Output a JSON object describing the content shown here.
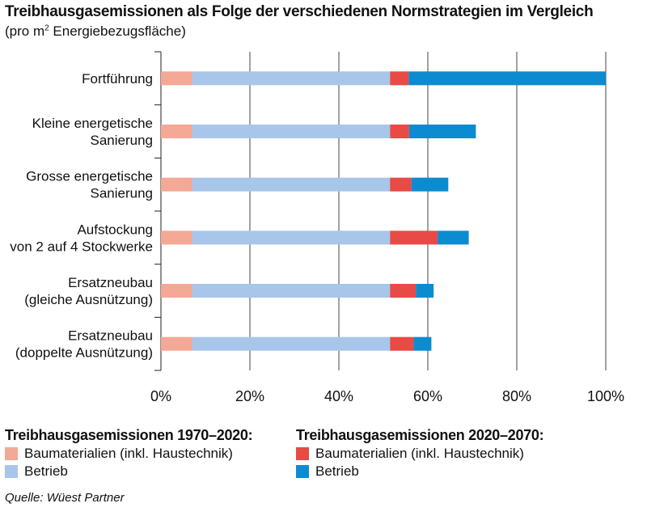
{
  "title": "Treibhausgasemissionen als Folge der verschiedenen Normstrategien im Vergleich",
  "subtitle_pre": "(pro m",
  "subtitle_sup": "2",
  "subtitle_post": " Energiebezugsfläche)",
  "source": "Quelle: Wüest Partner",
  "legend": {
    "group1": {
      "heading": "Treibhausgasemissionen 1970–2020:",
      "items": [
        {
          "label": "Baumaterialien (inkl. Haustechnik)",
          "color": "#f4a896"
        },
        {
          "label": "Betrieb",
          "color": "#a8c6ea"
        }
      ]
    },
    "group2": {
      "heading": "Treibhausgasemissionen 2020–2070:",
      "items": [
        {
          "label": "Baumaterialien (inkl. Haustechnik)",
          "color": "#e84a45"
        },
        {
          "label": "Betrieb",
          "color": "#0d8bd0"
        }
      ]
    }
  },
  "chart_data": {
    "type": "bar",
    "orientation": "horizontal",
    "stacked": true,
    "categories": [
      [
        "Fortführung"
      ],
      [
        "Kleine energetische",
        "Sanierung"
      ],
      [
        "Grosse energetische",
        "Sanierung"
      ],
      [
        "Aufstockung",
        "von 2 auf 4 Stockwerke"
      ],
      [
        "Ersatzneubau",
        "(gleiche Ausnützung)"
      ],
      [
        "Ersatzneubau",
        "(doppelte Ausnützung)"
      ]
    ],
    "series": [
      {
        "name": "Baumaterialien (inkl. Haustechnik) 1970–2020",
        "color": "#f4a896",
        "values": [
          7,
          7,
          7,
          7,
          7,
          7
        ]
      },
      {
        "name": "Betrieb 1970–2020",
        "color": "#a8c6ea",
        "values": [
          44.5,
          44.5,
          44.5,
          44.5,
          44.5,
          44.5
        ]
      },
      {
        "name": "Baumaterialien (inkl. Haustechnik) 2020–2070",
        "color": "#e84a45",
        "values": [
          4.2,
          4.3,
          4.8,
          10.7,
          5.8,
          5.3
        ]
      },
      {
        "name": "Betrieb 2020–2070",
        "color": "#0d8bd0",
        "values": [
          44.3,
          15,
          8.3,
          7,
          4,
          4
        ]
      }
    ],
    "x_ticks": [
      "0%",
      "20%",
      "40%",
      "60%",
      "80%",
      "100%"
    ],
    "xlim": [
      0,
      100
    ],
    "grid": true
  }
}
